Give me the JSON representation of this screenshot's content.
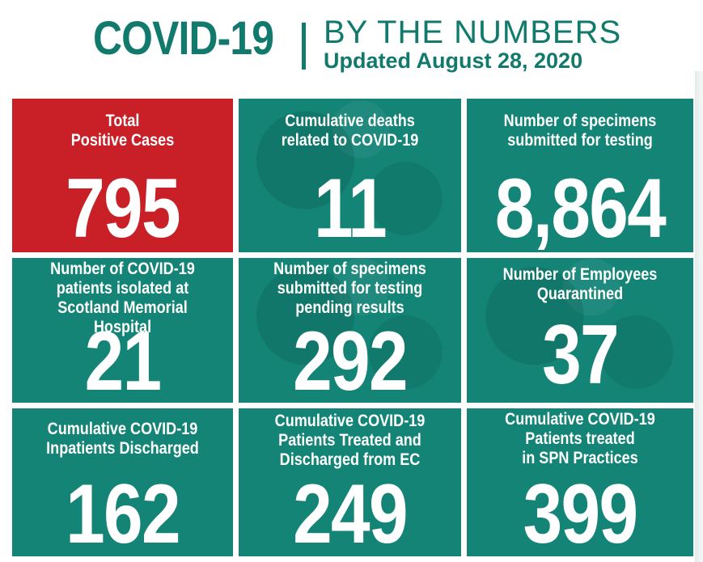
{
  "header": {
    "title": "COVID-19",
    "subtitle": "BY THE NUMBERS",
    "updated": "Updated August 28, 2020"
  },
  "colors": {
    "teal": "#138476",
    "red": "#c91f26",
    "title_teal": "#127a6c"
  },
  "tiles": [
    {
      "label_lines": [
        "Total",
        "Positive Cases"
      ],
      "value": "795"
    },
    {
      "label_lines": [
        "Cumulative deaths",
        "related to COVID-19"
      ],
      "value": "11"
    },
    {
      "label_lines": [
        "Number of specimens",
        "submitted for testing"
      ],
      "value": "8,864"
    },
    {
      "label_lines": [
        "Number of COVID-19",
        "patients isolated at",
        "Scotland Memorial Hospital"
      ],
      "value": "21"
    },
    {
      "label_lines": [
        "Number of specimens",
        "submitted for testing",
        "pending results"
      ],
      "value": "292"
    },
    {
      "label_lines": [
        "Number of Employees",
        "Quarantined"
      ],
      "value": "37"
    },
    {
      "label_lines": [
        "Cumulative COVID-19",
        "Inpatients Discharged"
      ],
      "value": "162"
    },
    {
      "label_lines": [
        "Cumulative COVID-19",
        "Patients Treated and",
        "Discharged from EC"
      ],
      "value": "249"
    },
    {
      "label_lines": [
        "Cumulative COVID-19",
        "Patients treated",
        "in SPN Practices"
      ],
      "value": "399"
    }
  ]
}
